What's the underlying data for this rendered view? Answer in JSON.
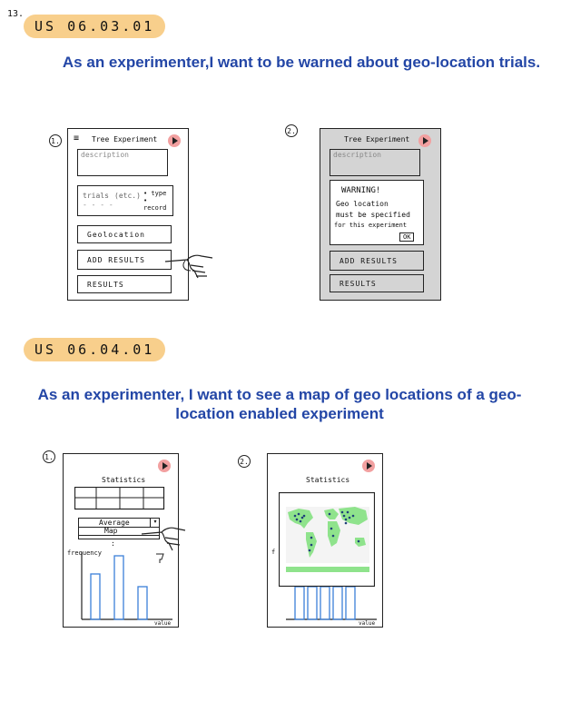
{
  "page_number": "13.",
  "story1": {
    "tag": "US 06.03.01",
    "text": "As an experimenter,I want to be warned about geo-location trials.",
    "screen1": {
      "num": "1.",
      "title": "Tree Experiment",
      "description_placeholder": "description",
      "trials_label": "trials",
      "trials_etc": "(etc.)",
      "trial_type_1": "• type",
      "trial_type_2": "• record",
      "trials_dots": "- - - -",
      "geolocation_button": "Geolocation",
      "add_results_button": "ADD RESULTS",
      "results_button": "RESULTS"
    },
    "screen2": {
      "num": "2.",
      "title": "Tree Experiment",
      "description_placeholder": "description",
      "warning_title": "WARNING!",
      "warning_line1": "Geo location",
      "warning_line2": "must be specified",
      "warning_line3": "for this experiment",
      "ok_button": "OK",
      "add_results_button": "ADD RESULTS",
      "results_button": "RESULTS"
    }
  },
  "story2": {
    "tag": "US 06.04.01",
    "text": "As an experimenter, I want to see a map of geo locations of a geo-location enabled experiment",
    "screen1": {
      "num": "1.",
      "title": "Statistics",
      "dropdown_selected": "Average",
      "dropdown_option": "Map",
      "dropdown_dots": ":",
      "ylabel": "frequency",
      "xlabel": "value"
    },
    "screen2": {
      "num": "2.",
      "title": "Statistics",
      "ylabel": "f",
      "xlabel": "value"
    }
  },
  "colors": {
    "tag_bg": "#f8cf8c",
    "story_text": "#2346a6",
    "play_button": "#f2a0a0",
    "histogram_bar": "#3b7fd8",
    "map_land": "#8fe38c",
    "map_points": "#1f3f7a"
  }
}
